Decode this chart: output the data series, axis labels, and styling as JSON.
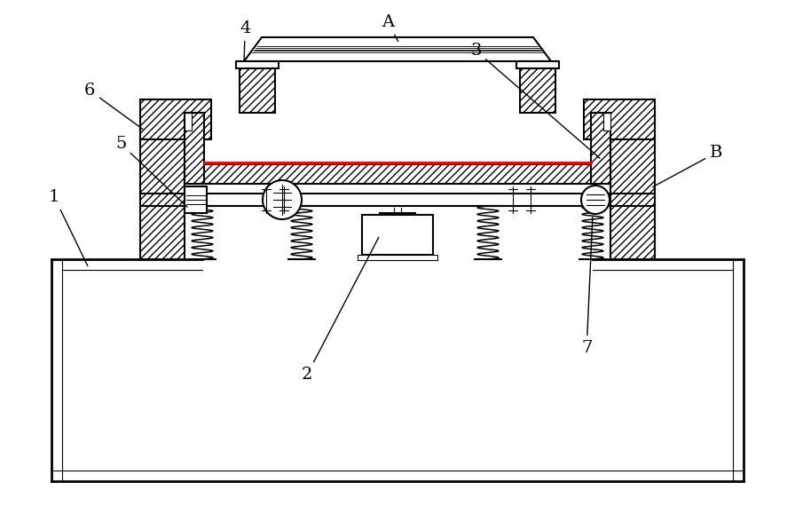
{
  "bg_color": "#ffffff",
  "line_color": "#000000",
  "figsize": [
    8.96,
    5.97
  ],
  "dpi": 100,
  "lw_main": 1.5,
  "lw_thin": 0.8,
  "fs_label": 14
}
